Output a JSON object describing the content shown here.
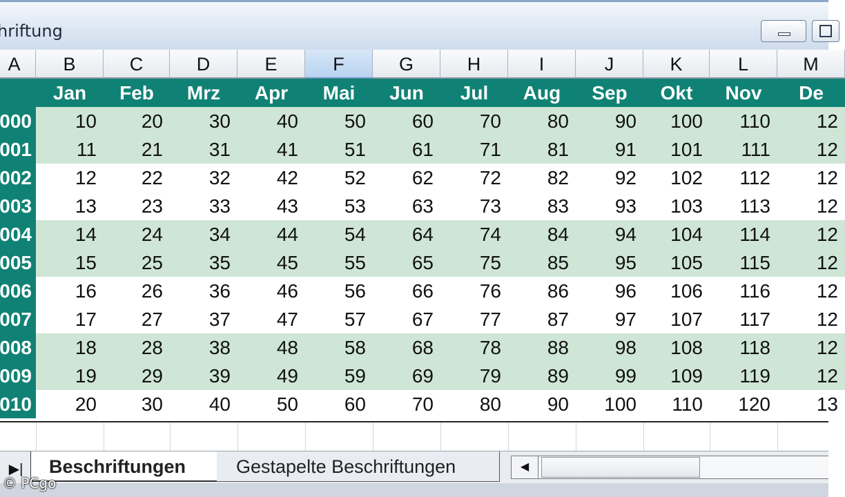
{
  "window": {
    "title": "hriftung"
  },
  "columns": [
    "A",
    "B",
    "C",
    "D",
    "E",
    "F",
    "G",
    "H",
    "I",
    "J",
    "K",
    "L",
    "M"
  ],
  "selected_column": "F",
  "months": [
    "Jan",
    "Feb",
    "Mrz",
    "Apr",
    "Mai",
    "Jun",
    "Jul",
    "Aug",
    "Sep",
    "Okt",
    "Nov",
    "De"
  ],
  "rows": [
    {
      "label": "000",
      "values": [
        "10",
        "20",
        "30",
        "40",
        "50",
        "60",
        "70",
        "80",
        "90",
        "100",
        "110",
        "12"
      ]
    },
    {
      "label": "001",
      "values": [
        "11",
        "21",
        "31",
        "41",
        "51",
        "61",
        "71",
        "81",
        "91",
        "101",
        "111",
        "12"
      ]
    },
    {
      "label": "002",
      "values": [
        "12",
        "22",
        "32",
        "42",
        "52",
        "62",
        "72",
        "82",
        "92",
        "102",
        "112",
        "12"
      ]
    },
    {
      "label": "003",
      "values": [
        "13",
        "23",
        "33",
        "43",
        "53",
        "63",
        "73",
        "83",
        "93",
        "103",
        "113",
        "12"
      ]
    },
    {
      "label": "004",
      "values": [
        "14",
        "24",
        "34",
        "44",
        "54",
        "64",
        "74",
        "84",
        "94",
        "104",
        "114",
        "12"
      ]
    },
    {
      "label": "005",
      "values": [
        "15",
        "25",
        "35",
        "45",
        "55",
        "65",
        "75",
        "85",
        "95",
        "105",
        "115",
        "12"
      ]
    },
    {
      "label": "006",
      "values": [
        "16",
        "26",
        "36",
        "46",
        "56",
        "66",
        "76",
        "86",
        "96",
        "106",
        "116",
        "12"
      ]
    },
    {
      "label": "007",
      "values": [
        "17",
        "27",
        "37",
        "47",
        "57",
        "67",
        "77",
        "87",
        "97",
        "107",
        "117",
        "12"
      ]
    },
    {
      "label": "008",
      "values": [
        "18",
        "28",
        "38",
        "48",
        "58",
        "68",
        "78",
        "88",
        "98",
        "108",
        "118",
        "12"
      ]
    },
    {
      "label": "009",
      "values": [
        "19",
        "29",
        "39",
        "49",
        "59",
        "69",
        "79",
        "89",
        "99",
        "109",
        "119",
        "12"
      ]
    },
    {
      "label": "010",
      "values": [
        "20",
        "30",
        "40",
        "50",
        "60",
        "70",
        "80",
        "90",
        "100",
        "110",
        "120",
        "13"
      ]
    }
  ],
  "bands": [
    "green",
    "green",
    "white",
    "white",
    "green",
    "green",
    "white",
    "white",
    "green",
    "green",
    "white"
  ],
  "colors": {
    "header_teal": "#108275",
    "band_green": "#cfe6d6"
  },
  "sheet_tabs": {
    "nav_glyph": "▶|",
    "active": "Beschriftungen",
    "inactive": "Gestapelte Beschriftungen"
  },
  "scrollbar": {
    "left_arrow": "◀"
  },
  "watermark": "© PCgo"
}
